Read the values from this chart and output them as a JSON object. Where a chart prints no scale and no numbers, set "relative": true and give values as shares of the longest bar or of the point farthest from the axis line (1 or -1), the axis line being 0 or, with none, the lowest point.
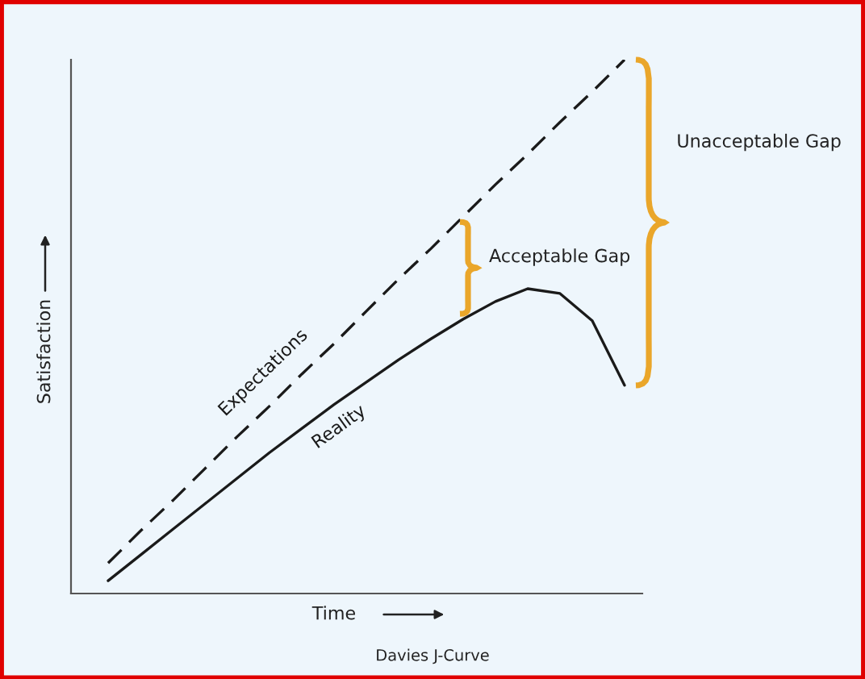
{
  "chart_data": {
    "type": "line",
    "title": "Davies J-Curve",
    "xlabel": "Time",
    "ylabel": "Satisfaction",
    "relative": true,
    "legend": false,
    "grid": false,
    "categories": [
      null,
      null,
      null,
      null,
      null,
      null,
      null,
      null,
      null,
      null,
      null,
      null,
      null,
      null,
      null,
      null,
      null
    ],
    "series": [
      {
        "name": "Expectations",
        "color": "#1a1a1a",
        "line_style": "dashed",
        "values": [
          0.057,
          0.117,
          0.174,
          0.234,
          0.294,
          0.351,
          0.411,
          0.468,
          0.529,
          0.589,
          0.646,
          0.706,
          0.766,
          0.823,
          0.883,
          0.94,
          1
        ]
      },
      {
        "name": "Reality",
        "color": "#1a1a1a",
        "line_style": "solid",
        "values": [
          0.024,
          0.072,
          0.12,
          0.168,
          0.216,
          0.264,
          0.309,
          0.354,
          0.396,
          0.438,
          0.477,
          0.514,
          0.547,
          0.571,
          0.562,
          0.511,
          0.39
        ]
      }
    ],
    "annotations": [
      "Acceptable Gap",
      "Unacceptable Gap"
    ]
  }
}
